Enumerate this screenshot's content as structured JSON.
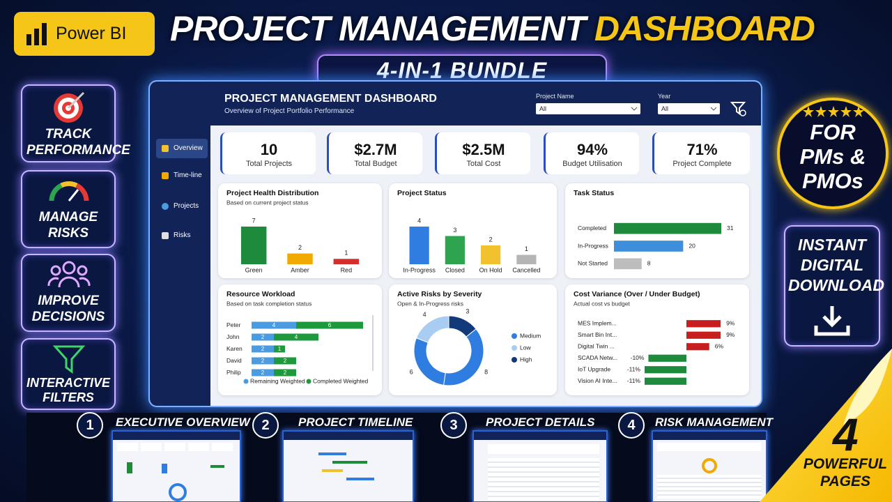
{
  "header": {
    "logo": "Power BI",
    "title_white": "PROJECT MANAGEMENT",
    "title_yellow": "DASHBOARD",
    "bundle": "4-IN-1 BUNDLE"
  },
  "features": [
    {
      "label": "TRACK PERFORMANCE"
    },
    {
      "label": "MANAGE RISKS"
    },
    {
      "label": "IMPROVE DECISIONS"
    },
    {
      "label": "INTERACTIVE FILTERS"
    }
  ],
  "right_badges": {
    "audience": "FOR PMs & PMOs",
    "download": "INSTANT DIGITAL DOWNLOAD"
  },
  "dashboard": {
    "title": "PROJECT MANAGEMENT DASHBOARD",
    "subtitle": "Overview of Project Portfolio Performance",
    "filters": [
      {
        "label": "Project Name",
        "value": "All"
      },
      {
        "label": "Year",
        "value": "All"
      }
    ],
    "nav": [
      "Overview",
      "Time-line",
      "Projects",
      "Risks"
    ],
    "kpis": [
      {
        "value": "10",
        "label": "Total Projects"
      },
      {
        "value": "$2.7M",
        "label": "Total Budget"
      },
      {
        "value": "$2.5M",
        "label": "Total Cost"
      },
      {
        "value": "94%",
        "label": "Budget Utilisation"
      },
      {
        "value": "71%",
        "label": "Project Complete"
      }
    ]
  },
  "chart_data": [
    {
      "type": "bar",
      "title": "Project Health Distribution",
      "subtitle": "Based on current project status",
      "categories": [
        "Green",
        "Amber",
        "Red"
      ],
      "values": [
        7,
        2,
        1
      ],
      "colors": [
        "#1e8a3c",
        "#f2a900",
        "#d62d2d"
      ]
    },
    {
      "type": "bar",
      "title": "Project Status",
      "categories": [
        "In-Progress",
        "Closed",
        "On Hold",
        "Cancelled"
      ],
      "values": [
        4,
        3,
        2,
        1
      ],
      "colors": [
        "#2f7de1",
        "#2ea44f",
        "#f2c12e",
        "#b5b5b5"
      ]
    },
    {
      "type": "hbar",
      "title": "Task Status",
      "categories": [
        "Completed",
        "In-Progress",
        "Not Started"
      ],
      "values": [
        31,
        20,
        8
      ],
      "colors": [
        "#1e8a3c",
        "#3d8fdc",
        "#bdbdbd"
      ]
    },
    {
      "type": "stacked_hbar",
      "title": "Resource Workload",
      "subtitle": "Based on task completion status",
      "categories": [
        "Peter",
        "John",
        "Karen",
        "David",
        "Philip"
      ],
      "series": [
        {
          "name": "Remaining Weighted",
          "color": "#4a9be0",
          "values": [
            4,
            2,
            2,
            2,
            2
          ]
        },
        {
          "name": "Completed Weighted",
          "color": "#1e9a3c",
          "values": [
            6,
            4,
            1,
            2,
            2
          ]
        }
      ]
    },
    {
      "type": "donut",
      "title": "Active Risks by Severity",
      "subtitle": "Open & In-Progress risks",
      "values": [
        3,
        8,
        6,
        4
      ],
      "colors": [
        "#123a7a",
        "#2f7de1",
        "#2f7de1",
        "#a9cdf2"
      ],
      "legend": [
        {
          "name": "Medium",
          "color": "#2f7de1"
        },
        {
          "name": "Low",
          "color": "#a9cdf2"
        },
        {
          "name": "High",
          "color": "#123a7a"
        }
      ]
    },
    {
      "type": "hbar",
      "title": "Cost Variance (Over / Under Budget)",
      "subtitle": "Actual cost vs budget",
      "categories": [
        "MES Implem...",
        "Smart Bin Int...",
        "Digital Twin ...",
        "SCADA Netw...",
        "IoT Upgrade",
        "Vision AI Inte..."
      ],
      "values": [
        9,
        9,
        6,
        -10,
        -11,
        -11
      ],
      "value_labels": [
        "9%",
        "9%",
        "6%",
        "-10%",
        "-11%",
        "-11%"
      ],
      "colors": [
        "#c71f1f",
        "#c71f1f",
        "#c71f1f",
        "#1e8a3c",
        "#1e8a3c",
        "#1e8a3c"
      ]
    }
  ],
  "pages": [
    {
      "number": "1",
      "title": "EXECUTIVE OVERVIEW"
    },
    {
      "number": "2",
      "title": "PROJECT TIMELINE"
    },
    {
      "number": "3",
      "title": "PROJECT DETAILS"
    },
    {
      "number": "4",
      "title": "RISK MANAGEMENT"
    }
  ],
  "footer": {
    "count": "4",
    "caption": "POWERFUL PAGES"
  }
}
